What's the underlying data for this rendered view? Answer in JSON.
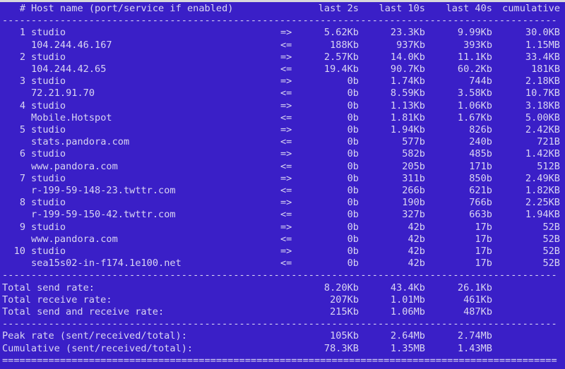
{
  "header": {
    "index": "#",
    "host": "Host name (port/service if enabled)",
    "last2s": "last 2s",
    "last10s": "last 10s",
    "last40s": "last 40s",
    "cumulative": "cumulative"
  },
  "hosts": [
    {
      "index": "1",
      "local": "studio",
      "remote": "104.244.46.167",
      "send": [
        "5.62Kb",
        "23.3Kb",
        "9.99Kb",
        "30.0KB"
      ],
      "recv": [
        "188Kb",
        "937Kb",
        "393Kb",
        "1.15MB"
      ]
    },
    {
      "index": "2",
      "local": "studio",
      "remote": "104.244.42.65",
      "send": [
        "2.57Kb",
        "14.0Kb",
        "11.1Kb",
        "33.4KB"
      ],
      "recv": [
        "19.4Kb",
        "90.7Kb",
        "60.2Kb",
        "181KB"
      ]
    },
    {
      "index": "3",
      "local": "studio",
      "remote": "72.21.91.70",
      "send": [
        "0b",
        "1.74Kb",
        "744b",
        "2.18KB"
      ],
      "recv": [
        "0b",
        "8.59Kb",
        "3.58Kb",
        "10.7KB"
      ]
    },
    {
      "index": "4",
      "local": "studio",
      "remote": "Mobile.Hotspot",
      "send": [
        "0b",
        "1.13Kb",
        "1.06Kb",
        "3.18KB"
      ],
      "recv": [
        "0b",
        "1.81Kb",
        "1.67Kb",
        "5.00KB"
      ]
    },
    {
      "index": "5",
      "local": "studio",
      "remote": "stats.pandora.com",
      "send": [
        "0b",
        "1.94Kb",
        "826b",
        "2.42KB"
      ],
      "recv": [
        "0b",
        "577b",
        "240b",
        "721B"
      ]
    },
    {
      "index": "6",
      "local": "studio",
      "remote": "www.pandora.com",
      "send": [
        "0b",
        "582b",
        "485b",
        "1.42KB"
      ],
      "recv": [
        "0b",
        "205b",
        "171b",
        "512B"
      ]
    },
    {
      "index": "7",
      "local": "studio",
      "remote": "r-199-59-148-23.twttr.com",
      "send": [
        "0b",
        "311b",
        "850b",
        "2.49KB"
      ],
      "recv": [
        "0b",
        "266b",
        "621b",
        "1.82KB"
      ]
    },
    {
      "index": "8",
      "local": "studio",
      "remote": "r-199-59-150-42.twttr.com",
      "send": [
        "0b",
        "190b",
        "766b",
        "2.25KB"
      ],
      "recv": [
        "0b",
        "327b",
        "663b",
        "1.94KB"
      ]
    },
    {
      "index": "9",
      "local": "studio",
      "remote": "www.pandora.com",
      "send": [
        "0b",
        "42b",
        "17b",
        "52B"
      ],
      "recv": [
        "0b",
        "42b",
        "17b",
        "52B"
      ]
    },
    {
      "index": "10",
      "local": "studio",
      "remote": "sea15s02-in-f174.1e100.net",
      "send": [
        "0b",
        "42b",
        "17b",
        "52B"
      ],
      "recv": [
        "0b",
        "42b",
        "17b",
        "52B"
      ]
    }
  ],
  "arrows": {
    "send": "=>",
    "recv": "<="
  },
  "totals": [
    {
      "label": "Total send rate:",
      "values": [
        "8.20Kb",
        "43.4Kb",
        "26.1Kb"
      ]
    },
    {
      "label": "Total receive rate:",
      "values": [
        "207Kb",
        "1.01Mb",
        "461Kb"
      ]
    },
    {
      "label": "Total send and receive rate:",
      "values": [
        "215Kb",
        "1.06Mb",
        "487Kb"
      ]
    }
  ],
  "summary": [
    {
      "label": "Peak rate (sent/received/total):",
      "values": [
        "105Kb",
        "2.64Mb",
        "2.74Mb"
      ]
    },
    {
      "label": "Cumulative (sent/received/total):",
      "values": [
        "78.3KB",
        "1.35MB",
        "1.43MB"
      ]
    }
  ],
  "colors": {
    "background": "#3a1fc7",
    "text": "#d9d5f2"
  }
}
